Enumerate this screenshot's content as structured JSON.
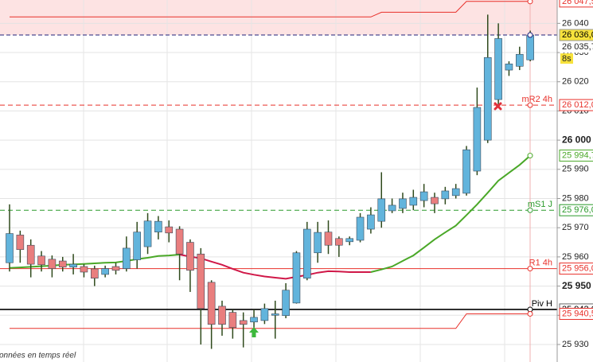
{
  "chart_data": {
    "type": "candlestick",
    "ylim": [
      25924,
      26048
    ],
    "yticks": [
      {
        "value": 26040,
        "label": "26 040"
      },
      {
        "value": 26030,
        "label": "26 030"
      },
      {
        "value": 26020,
        "label": "26 020"
      },
      {
        "value": 26010,
        "label": "26 010"
      },
      {
        "value": 26000,
        "label": "26 000"
      },
      {
        "value": 25990,
        "label": "25 990"
      },
      {
        "value": 25980,
        "label": "25 980"
      },
      {
        "value": 25970,
        "label": "25 970"
      },
      {
        "value": 25960,
        "label": "25 960"
      },
      {
        "value": 25950,
        "label": "25 950"
      },
      {
        "value": 25940,
        "label": "25 940"
      },
      {
        "value": 25930,
        "label": "25 930"
      }
    ],
    "bold_ticks": [
      26000,
      25950
    ],
    "grid": true,
    "up_color": "#62b4dc",
    "down_color": "#e97e7e",
    "wick_color": "#2f4a1c",
    "candles": {
      "open": [
        25958,
        25967.5,
        25964,
        25960.3,
        25959.2,
        25958.6,
        25956.5,
        25956.7,
        25955.9,
        25954,
        25956.7,
        25956,
        25959,
        25963.5,
        25968.5,
        25970.3,
        25969.5,
        25965,
        25961,
        25951.3,
        25943.1,
        25941,
        25938.2,
        25937.7,
        25938.2,
        25940,
        25939.9,
        25944.2,
        25952.7,
        25961.4,
        25968.5,
        25966.3,
        25965.2,
        25965.7,
        25969.5,
        25972.2,
        25975.8,
        25976.6,
        25977.7,
        25979.3,
        25980.4,
        25979.9,
        25981,
        25981.8,
        25989.4,
        26000,
        26013.9,
        26024,
        26025.3,
        26027.5
      ],
      "high": [
        25978,
        25969,
        25966,
        25962,
        25960.5,
        25960,
        25961,
        25957.5,
        25957,
        25957,
        25958,
        25967,
        25972,
        25975,
        25974,
        25972.5,
        25970.5,
        25966,
        25963,
        25952,
        25945,
        25942,
        25941,
        25942,
        25944,
        25945,
        25951,
        25962,
        25972,
        25972,
        25972.5,
        25967,
        25967,
        25975,
        25977,
        25989,
        25980,
        25982,
        25983,
        25985,
        25982,
        25984,
        25985,
        25998,
        26018,
        26043,
        26040,
        26027,
        26032,
        26037.5
      ],
      "low": [
        25955,
        25958,
        25953,
        25955,
        25953,
        25955,
        25954,
        25953,
        25950,
        25953,
        25954,
        25955,
        25956,
        25961,
        25966,
        25965,
        25952,
        25948,
        25930,
        25928.5,
        25933,
        25932,
        25929,
        25935,
        25937,
        25932,
        25939,
        25944,
        25952,
        25958,
        25961,
        25960,
        25964,
        25965,
        25968,
        25970,
        25975,
        25975,
        25976,
        25977,
        25975,
        25978,
        25980,
        25981,
        25988,
        25999,
        26012,
        26022,
        26024,
        26027
      ],
      "close": [
        25968,
        25962.5,
        25957.5,
        25957.3,
        25956,
        25956.5,
        25957.5,
        25954.8,
        25952.7,
        25956,
        25955.4,
        25963,
        25968.5,
        25972.3,
        25972.2,
        25968.2,
        25961,
        25955.4,
        25942.3,
        25936.9,
        25936.9,
        25935.8,
        25936.9,
        25939.3,
        25942.3,
        25940.5,
        25948.6,
        25961.4,
        25969.5,
        25968.4,
        25964,
        25964,
        25966.3,
        25973.6,
        25974.4,
        25979.9,
        25977.7,
        25979.9,
        25980.4,
        25982.3,
        25978.2,
        25982.6,
        25983.4,
        25996.7,
        26011.2,
        26028.3,
        26034.8,
        26026.1,
        26029.4,
        26036
      ]
    },
    "series": [
      {
        "color": "#e8302a",
        "width": 1,
        "end_label": "26 047,5",
        "values": [
          26042.2,
          26042.2,
          26042.2,
          26042.2,
          26042.2,
          26042.2,
          26042.2,
          26042.2,
          26042.2,
          26042.2,
          26042.2,
          26042.2,
          26042.2,
          26042.2,
          26042.2,
          26042.2,
          26042.2,
          26042.2,
          26042.2,
          26042.2,
          26042.2,
          26042.2,
          26042.2,
          26042.2,
          26042.2,
          26042.2,
          26042.2,
          26042.2,
          26042.2,
          26042.2,
          26042.2,
          26042.2,
          26042.2,
          26042.2,
          26042.2,
          26043.8,
          26043.8,
          26043.8,
          26043.8,
          26043.8,
          26043.8,
          26043.8,
          26043.8,
          26047.5,
          26047.5,
          26047.5,
          26047.5,
          26047.5,
          26047.5,
          26047.5
        ]
      },
      {
        "color": "#e8302a",
        "width": 1,
        "end_label": "25 940,5",
        "values": [
          25935.5,
          25935.5,
          25935.5,
          25935.5,
          25935.5,
          25935.5,
          25935.5,
          25935.5,
          25935.5,
          25935.5,
          25935.5,
          25935.5,
          25935.5,
          25935.5,
          25935.5,
          25935.5,
          25935.5,
          25935.5,
          25935.5,
          25935.5,
          25935.5,
          25935.5,
          25935.5,
          25935.5,
          25935.5,
          25935.5,
          25935.5,
          25935.5,
          25935.5,
          25935.5,
          25935.5,
          25935.5,
          25935.5,
          25935.5,
          25935.5,
          25935.5,
          25935.5,
          25935.5,
          25935.5,
          25935.5,
          25935.5,
          25935.5,
          25935.5,
          25940.5,
          25940.5,
          25940.5,
          25940.5,
          25940.5,
          25940.5,
          25940.5
        ]
      },
      {
        "color": "#d01848",
        "width": 2,
        "values": [
          null,
          null,
          null,
          null,
          null,
          null,
          null,
          null,
          null,
          null,
          null,
          null,
          null,
          null,
          null,
          null,
          25960.8,
          25960.1,
          25959.5,
          25958.4,
          25957.3,
          25955.9,
          25954.6,
          25953.9,
          25953.3,
          25952.9,
          25952.5,
          25953.2,
          25953.8,
          25954.6,
          25955.1,
          25955,
          25954.8,
          25954.8,
          25954.8,
          null,
          null,
          null,
          null,
          null,
          null,
          null,
          null,
          null,
          null,
          null,
          null,
          null,
          null,
          null
        ]
      },
      {
        "color": "#4aa828",
        "width": 2,
        "end_label": "25 994,7",
        "values": [
          25956.2,
          25956.4,
          25956.6,
          25956.8,
          25957,
          25957.3,
          25957.4,
          25957.6,
          25957.8,
          25958,
          25958.1,
          25958.6,
          25959.2,
          25959.7,
          25960.3,
          25960.5,
          25960.8,
          null,
          null,
          null,
          null,
          null,
          null,
          null,
          null,
          null,
          null,
          null,
          null,
          null,
          null,
          null,
          null,
          null,
          25954.8,
          25955.7,
          25956.7,
          25958.6,
          25960.5,
          25963.2,
          25966,
          25968.4,
          25970.7,
          25974.3,
          25978,
          25982,
          25986.1,
          25988.8,
          25991.5,
          25994.7
        ]
      }
    ],
    "levels": [
      {
        "name": "mR2 4h",
        "value": 26012,
        "value_label": "26 012,0",
        "color": "#e8302a",
        "dashed": true
      },
      {
        "name": "mS1 J",
        "value": 25976,
        "value_label": "25 976,0",
        "color": "#2a9a2a",
        "dashed": true
      },
      {
        "name": "R1 4h",
        "value": 25956,
        "value_label": "25 956,0",
        "color": "#e8302a",
        "dashed": false
      },
      {
        "name": "Piv H",
        "value": 25942,
        "value_label": "25 942,0",
        "color": "#000000",
        "dashed": false
      }
    ],
    "last": {
      "value": 26036,
      "label": "26 036,0",
      "color": "#20207a"
    },
    "bid": {
      "value": 26035.7,
      "label": "26 035,7"
    },
    "timer": "8s",
    "footer": "onnées en temps réel"
  }
}
